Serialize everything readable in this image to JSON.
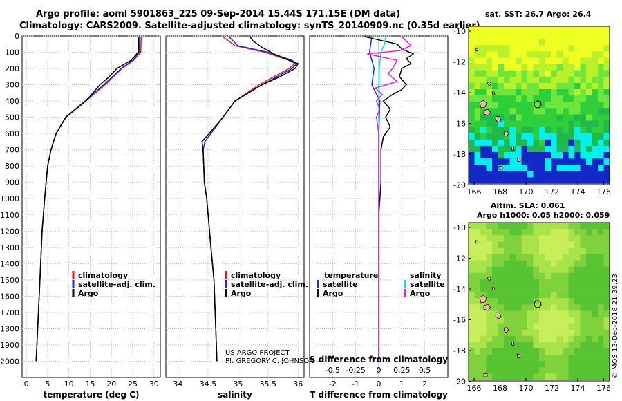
{
  "header": {
    "line1": "Argo profile: aoml 5901863_225 09-Sep-2014 15.44S 171.15E (DM data)",
    "line2": "Climatology: CARS2009. Satellite-adjusted climatology: synTS_20140909.nc (0.35d earlier)"
  },
  "maps": {
    "sst_title": "sat. SST: 26.7 Argo: 26.4",
    "sla_title1": "Altim. SLA: 0.061",
    "sla_title2": "Argo h1000: 0.05 h2000: 0.059",
    "lat_ticks": [
      "-10",
      "-12",
      "-14",
      "-16",
      "-18",
      "-20"
    ],
    "lon_ticks": [
      "166",
      "168",
      "170",
      "172",
      "174",
      "176"
    ],
    "watermark": "©IMOS 13-Dec-2018 21:39:23"
  },
  "credit": {
    "line1": "US ARGO PROJECT",
    "line2": "PI: GREGORY C. JOHNSON"
  },
  "colors": {
    "climatology": "#e41a1c",
    "satellite": "#1f2de0",
    "argo": "#000000",
    "sal_diff_sat": "#00e5ee",
    "sal_diff_argo": "#e61ee6"
  },
  "chart_data": [
    {
      "type": "line",
      "name": "temperature",
      "xlabel": "temperature (deg C)",
      "ylabel": "",
      "xlim": [
        -1,
        31.5
      ],
      "ylim": [
        2100,
        0
      ],
      "x_ticks": [
        "0",
        "5",
        "10",
        "15",
        "20",
        "25",
        "30"
      ],
      "y_ticks": [
        "0",
        "100",
        "200",
        "300",
        "400",
        "500",
        "600",
        "700",
        "800",
        "900",
        "1000",
        "1100",
        "1200",
        "1300",
        "1400",
        "1500",
        "1600",
        "1700",
        "1800",
        "1900",
        "2000"
      ],
      "legend": [
        "climatology",
        "satellite-adj. clim.",
        "Argo"
      ],
      "series": [
        {
          "name": "climatology",
          "depth": [
            5,
            100,
            150,
            200,
            300,
            400,
            500,
            600,
            700,
            800,
            1000,
            1200,
            1500,
            2000
          ],
          "values": [
            27.0,
            26.9,
            25.2,
            22.5,
            18.5,
            14.0,
            9.2,
            7.0,
            5.8,
            5.0,
            4.3,
            3.7,
            3.2,
            2.3
          ]
        },
        {
          "name": "satellite-adj. clim.",
          "depth": [
            5,
            100,
            150,
            200,
            300,
            400,
            500,
            600,
            700,
            800,
            1000,
            1200,
            1500,
            2000
          ],
          "values": [
            26.7,
            26.5,
            25.0,
            22.3,
            18.2,
            13.8,
            9.2,
            7.0,
            5.8,
            5.0,
            4.3,
            3.7,
            3.2,
            2.3
          ]
        },
        {
          "name": "Argo",
          "depth": [
            5,
            50,
            100,
            150,
            200,
            250,
            300,
            400,
            500,
            600,
            700,
            800,
            1000,
            1200,
            1500,
            2000
          ],
          "values": [
            26.4,
            26.4,
            26.3,
            24.6,
            21.3,
            19.5,
            17.3,
            14.0,
            9.3,
            7.0,
            5.8,
            5.0,
            4.3,
            3.7,
            3.2,
            2.3
          ]
        }
      ]
    },
    {
      "type": "line",
      "name": "salinity",
      "xlabel": "salinity",
      "xlim": [
        33.8,
        36.1
      ],
      "ylim": [
        2100,
        0
      ],
      "x_ticks": [
        "34",
        "34.5",
        "35",
        "35.5",
        "36"
      ],
      "legend": [
        "climatology",
        "satellite-adj. clim.",
        "Argo"
      ],
      "series": [
        {
          "name": "climatology",
          "depth": [
            5,
            60,
            100,
            150,
            170,
            200,
            300,
            400,
            500,
            600,
            650,
            700,
            900,
            1000,
            1300,
            1500,
            2000
          ],
          "values": [
            34.75,
            34.95,
            35.45,
            35.85,
            35.95,
            35.85,
            35.35,
            34.95,
            34.75,
            34.55,
            34.45,
            34.42,
            34.44,
            34.48,
            34.55,
            34.6,
            34.65
          ]
        },
        {
          "name": "satellite-adj. clim.",
          "depth": [
            5,
            60,
            100,
            150,
            170,
            200,
            300,
            400,
            500,
            600,
            650,
            700,
            900,
            1000,
            1300,
            1500,
            2000
          ],
          "values": [
            34.85,
            35.0,
            35.5,
            35.9,
            35.98,
            35.9,
            35.4,
            34.95,
            34.75,
            34.55,
            34.45,
            34.42,
            34.44,
            34.48,
            34.55,
            34.6,
            34.65
          ]
        },
        {
          "name": "Argo",
          "depth": [
            5,
            30,
            70,
            110,
            150,
            170,
            200,
            250,
            300,
            400,
            500,
            600,
            650,
            700,
            900,
            1000,
            1300,
            1500,
            2000
          ],
          "values": [
            35.2,
            35.25,
            35.4,
            35.6,
            35.85,
            36.0,
            35.95,
            35.7,
            35.4,
            34.95,
            34.75,
            34.52,
            34.4,
            34.42,
            34.44,
            34.48,
            34.55,
            34.6,
            34.65
          ]
        }
      ]
    },
    {
      "type": "line",
      "name": "difference",
      "xlabel": "T difference from climatology",
      "xlabel2": "S difference from climatology",
      "xlim": [
        -3,
        3
      ],
      "ylim": [
        2100,
        0
      ],
      "x_ticks_T": [
        "-2",
        "-1",
        "0",
        "1",
        "2"
      ],
      "x_ticks_S": [
        "-0.5",
        "-0.25",
        "0",
        "0.25",
        "0.5"
      ],
      "legend_temperature_title": "temperature",
      "legend_salinity_title": "salinity",
      "legend_items": [
        "satellite",
        "Argo"
      ],
      "series": [
        {
          "name": "T satellite",
          "depth": [
            5,
            100,
            200,
            300,
            400,
            600,
            800,
            1000,
            2000
          ],
          "values": [
            -0.3,
            -0.4,
            -0.2,
            -0.3,
            0.05,
            0,
            0,
            0,
            0
          ]
        },
        {
          "name": "T Argo",
          "depth": [
            5,
            50,
            80,
            110,
            140,
            170,
            200,
            250,
            300,
            330,
            360,
            400,
            450,
            500,
            560,
            620,
            700,
            800,
            900,
            1000,
            1100,
            1500,
            2000
          ],
          "values": [
            -0.6,
            0.8,
            1.0,
            1.5,
            1.2,
            1.4,
            1.0,
            0.9,
            1.2,
            1.0,
            0.6,
            0.2,
            0.5,
            0.3,
            0.5,
            0.2,
            0.1,
            0.1,
            0.1,
            0.05,
            0,
            0,
            0
          ]
        },
        {
          "name": "S satellite",
          "depth": [
            5,
            50,
            100,
            200,
            400,
            600,
            1000,
            2000
          ],
          "values": [
            0.3,
            0.25,
            0.1,
            0.02,
            0,
            0,
            0,
            0
          ]
        },
        {
          "name": "S Argo",
          "depth": [
            5,
            60,
            90,
            110,
            150,
            200,
            230,
            280,
            320,
            360,
            400,
            450,
            500,
            600,
            800,
            900,
            2000
          ],
          "values": [
            1.0,
            1.4,
            0.9,
            -0.5,
            0.8,
            0.6,
            0.4,
            0.8,
            -0.15,
            0.15,
            -0.1,
            0.05,
            -0.1,
            0,
            0,
            0,
            0
          ]
        }
      ]
    }
  ]
}
